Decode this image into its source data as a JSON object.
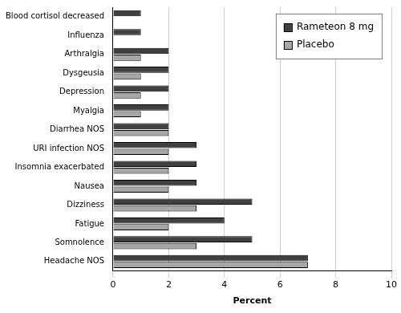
{
  "chart_data": {
    "type": "bar",
    "orientation": "horizontal",
    "x_label": "Percent",
    "categories": [
      "Blood cortisol decreased",
      "Influenza",
      "Arthralgia",
      "Dysgeusia",
      "Depression",
      "Myalgia",
      "Diarrhea NOS",
      "URI infection NOS",
      "Insomnia exacerbated",
      "Nausea",
      "Dizziness",
      "Fatigue",
      "Somnolence",
      "Headache NOS"
    ],
    "series": [
      {
        "name": "Rameteon 8 mg",
        "color": "#404040",
        "values": [
          1,
          1,
          2,
          2,
          2,
          2,
          2,
          3,
          3,
          3,
          5,
          4,
          5,
          7
        ]
      },
      {
        "name": "Placebo",
        "color": "#a6a6a6",
        "values": [
          0,
          0,
          1,
          1,
          1,
          1,
          2,
          2,
          2,
          2,
          3,
          2,
          3,
          7
        ]
      }
    ],
    "xlim": [
      0,
      10
    ],
    "xticks": [
      0,
      2,
      4,
      6,
      8,
      10
    ],
    "grid": true,
    "legend": "upper right"
  }
}
